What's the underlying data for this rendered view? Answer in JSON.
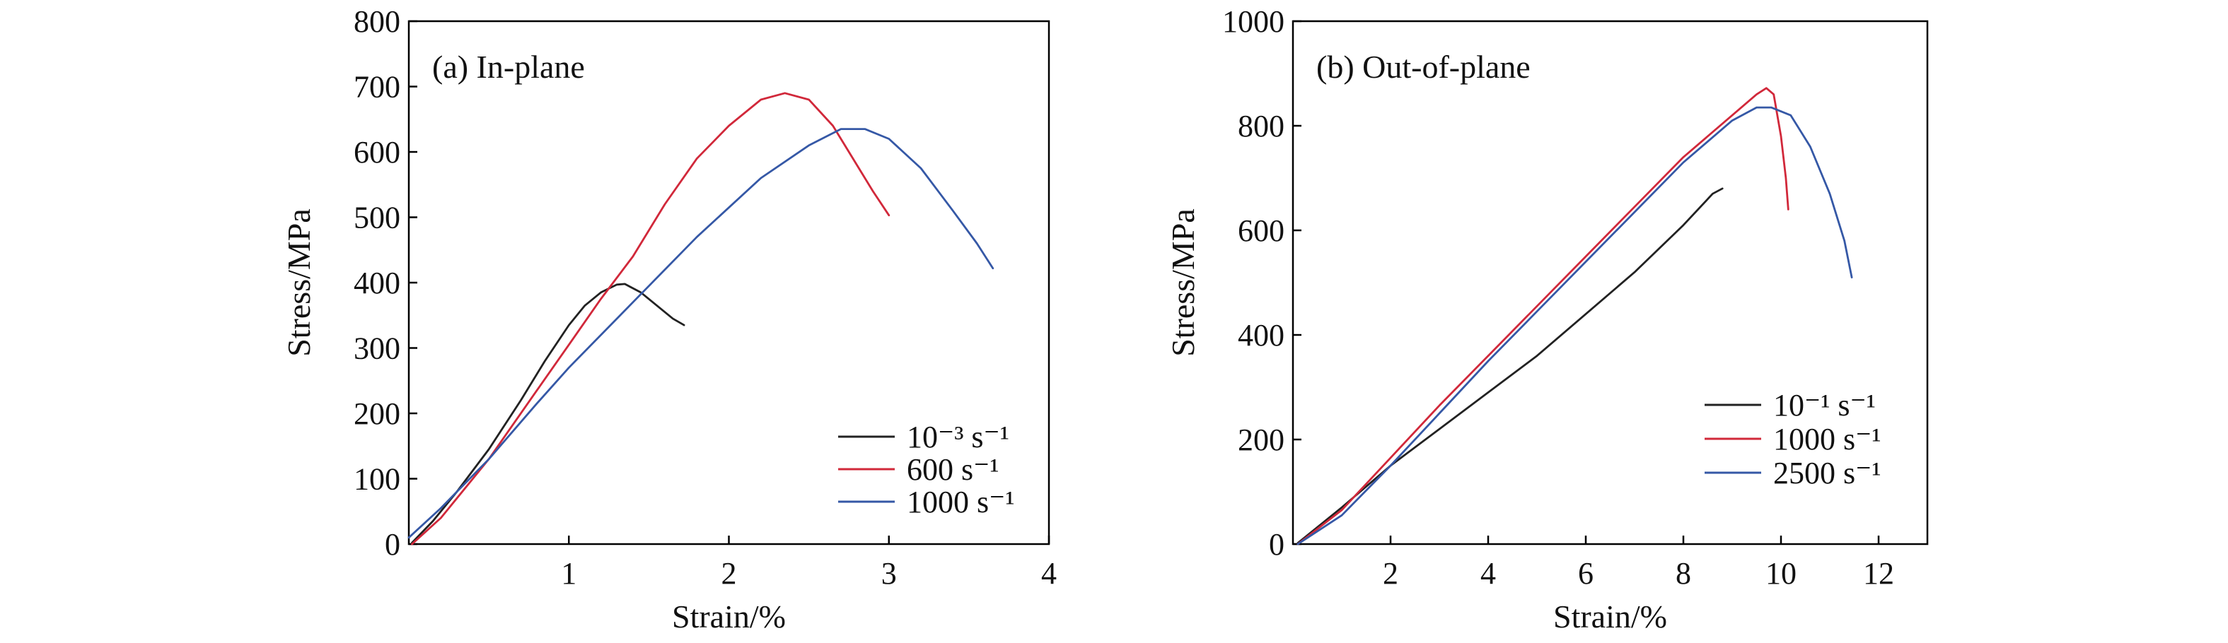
{
  "chart_data": [
    {
      "type": "line",
      "panel_label": "(a) In-plane",
      "xlabel": "Strain/%",
      "ylabel": "Stress/MPa",
      "xlim": [
        0,
        4
      ],
      "ylim": [
        0,
        800
      ],
      "xticks": [
        1,
        2,
        3,
        4
      ],
      "yticks": [
        0,
        100,
        200,
        300,
        400,
        500,
        600,
        700,
        800
      ],
      "legend_position": "bottom-right",
      "series": [
        {
          "name": "10⁻³ s⁻¹",
          "color": "#222222",
          "points": [
            [
              0.02,
              2
            ],
            [
              0.15,
              35
            ],
            [
              0.3,
              80
            ],
            [
              0.5,
              145
            ],
            [
              0.7,
              220
            ],
            [
              0.85,
              280
            ],
            [
              1.0,
              335
            ],
            [
              1.1,
              365
            ],
            [
              1.2,
              385
            ],
            [
              1.3,
              397
            ],
            [
              1.35,
              398
            ],
            [
              1.45,
              385
            ],
            [
              1.55,
              365
            ],
            [
              1.65,
              345
            ],
            [
              1.72,
              335
            ]
          ]
        },
        {
          "name": "600 s⁻¹",
          "color": "#d1283a",
          "points": [
            [
              0.02,
              0
            ],
            [
              0.2,
              40
            ],
            [
              0.5,
              130
            ],
            [
              0.8,
              235
            ],
            [
              1.0,
              305
            ],
            [
              1.2,
              375
            ],
            [
              1.4,
              440
            ],
            [
              1.6,
              520
            ],
            [
              1.8,
              590
            ],
            [
              2.0,
              640
            ],
            [
              2.2,
              680
            ],
            [
              2.35,
              690
            ],
            [
              2.5,
              680
            ],
            [
              2.65,
              640
            ],
            [
              2.8,
              580
            ],
            [
              2.9,
              540
            ],
            [
              3.0,
              503
            ]
          ]
        },
        {
          "name": "1000 s⁻¹",
          "color": "#3558a6",
          "points": [
            [
              0.0,
              10
            ],
            [
              0.2,
              55
            ],
            [
              0.5,
              130
            ],
            [
              0.8,
              215
            ],
            [
              1.0,
              270
            ],
            [
              1.4,
              370
            ],
            [
              1.8,
              470
            ],
            [
              2.2,
              560
            ],
            [
              2.5,
              610
            ],
            [
              2.7,
              635
            ],
            [
              2.85,
              635
            ],
            [
              3.0,
              620
            ],
            [
              3.2,
              575
            ],
            [
              3.4,
              510
            ],
            [
              3.55,
              460
            ],
            [
              3.65,
              422
            ]
          ]
        }
      ]
    },
    {
      "type": "line",
      "panel_label": "(b) Out-of-plane",
      "xlabel": "Strain/%",
      "ylabel": "Stress/MPa",
      "xlim": [
        0,
        13
      ],
      "ylim": [
        0,
        1000
      ],
      "xticks": [
        2,
        4,
        6,
        8,
        10,
        12
      ],
      "yticks": [
        0,
        200,
        400,
        600,
        800,
        1000
      ],
      "legend_position": "bottom-right",
      "series": [
        {
          "name": "10⁻¹ s⁻¹",
          "color": "#222222",
          "points": [
            [
              0.1,
              2
            ],
            [
              1.0,
              70
            ],
            [
              2.0,
              150
            ],
            [
              3.0,
              220
            ],
            [
              4.0,
              290
            ],
            [
              5.0,
              360
            ],
            [
              6.0,
              440
            ],
            [
              7.0,
              520
            ],
            [
              8.0,
              610
            ],
            [
              8.6,
              670
            ],
            [
              8.8,
              680
            ]
          ]
        },
        {
          "name": "1000 s⁻¹",
          "color": "#d1283a",
          "points": [
            [
              0.1,
              0
            ],
            [
              1.0,
              65
            ],
            [
              2.0,
              165
            ],
            [
              3.0,
              265
            ],
            [
              4.0,
              360
            ],
            [
              5.0,
              455
            ],
            [
              6.0,
              550
            ],
            [
              7.0,
              645
            ],
            [
              8.0,
              740
            ],
            [
              9.0,
              820
            ],
            [
              9.5,
              860
            ],
            [
              9.7,
              872
            ],
            [
              9.85,
              860
            ],
            [
              10.0,
              780
            ],
            [
              10.1,
              700
            ],
            [
              10.15,
              640
            ]
          ]
        },
        {
          "name": "2500 s⁻¹",
          "color": "#3558a6",
          "points": [
            [
              0.1,
              0
            ],
            [
              1.0,
              55
            ],
            [
              2.0,
              150
            ],
            [
              3.0,
              250
            ],
            [
              4.0,
              350
            ],
            [
              5.0,
              445
            ],
            [
              6.0,
              540
            ],
            [
              7.0,
              635
            ],
            [
              8.0,
              730
            ],
            [
              9.0,
              810
            ],
            [
              9.5,
              835
            ],
            [
              9.8,
              835
            ],
            [
              10.2,
              820
            ],
            [
              10.6,
              760
            ],
            [
              11.0,
              670
            ],
            [
              11.3,
              580
            ],
            [
              11.45,
              510
            ]
          ]
        }
      ]
    }
  ]
}
